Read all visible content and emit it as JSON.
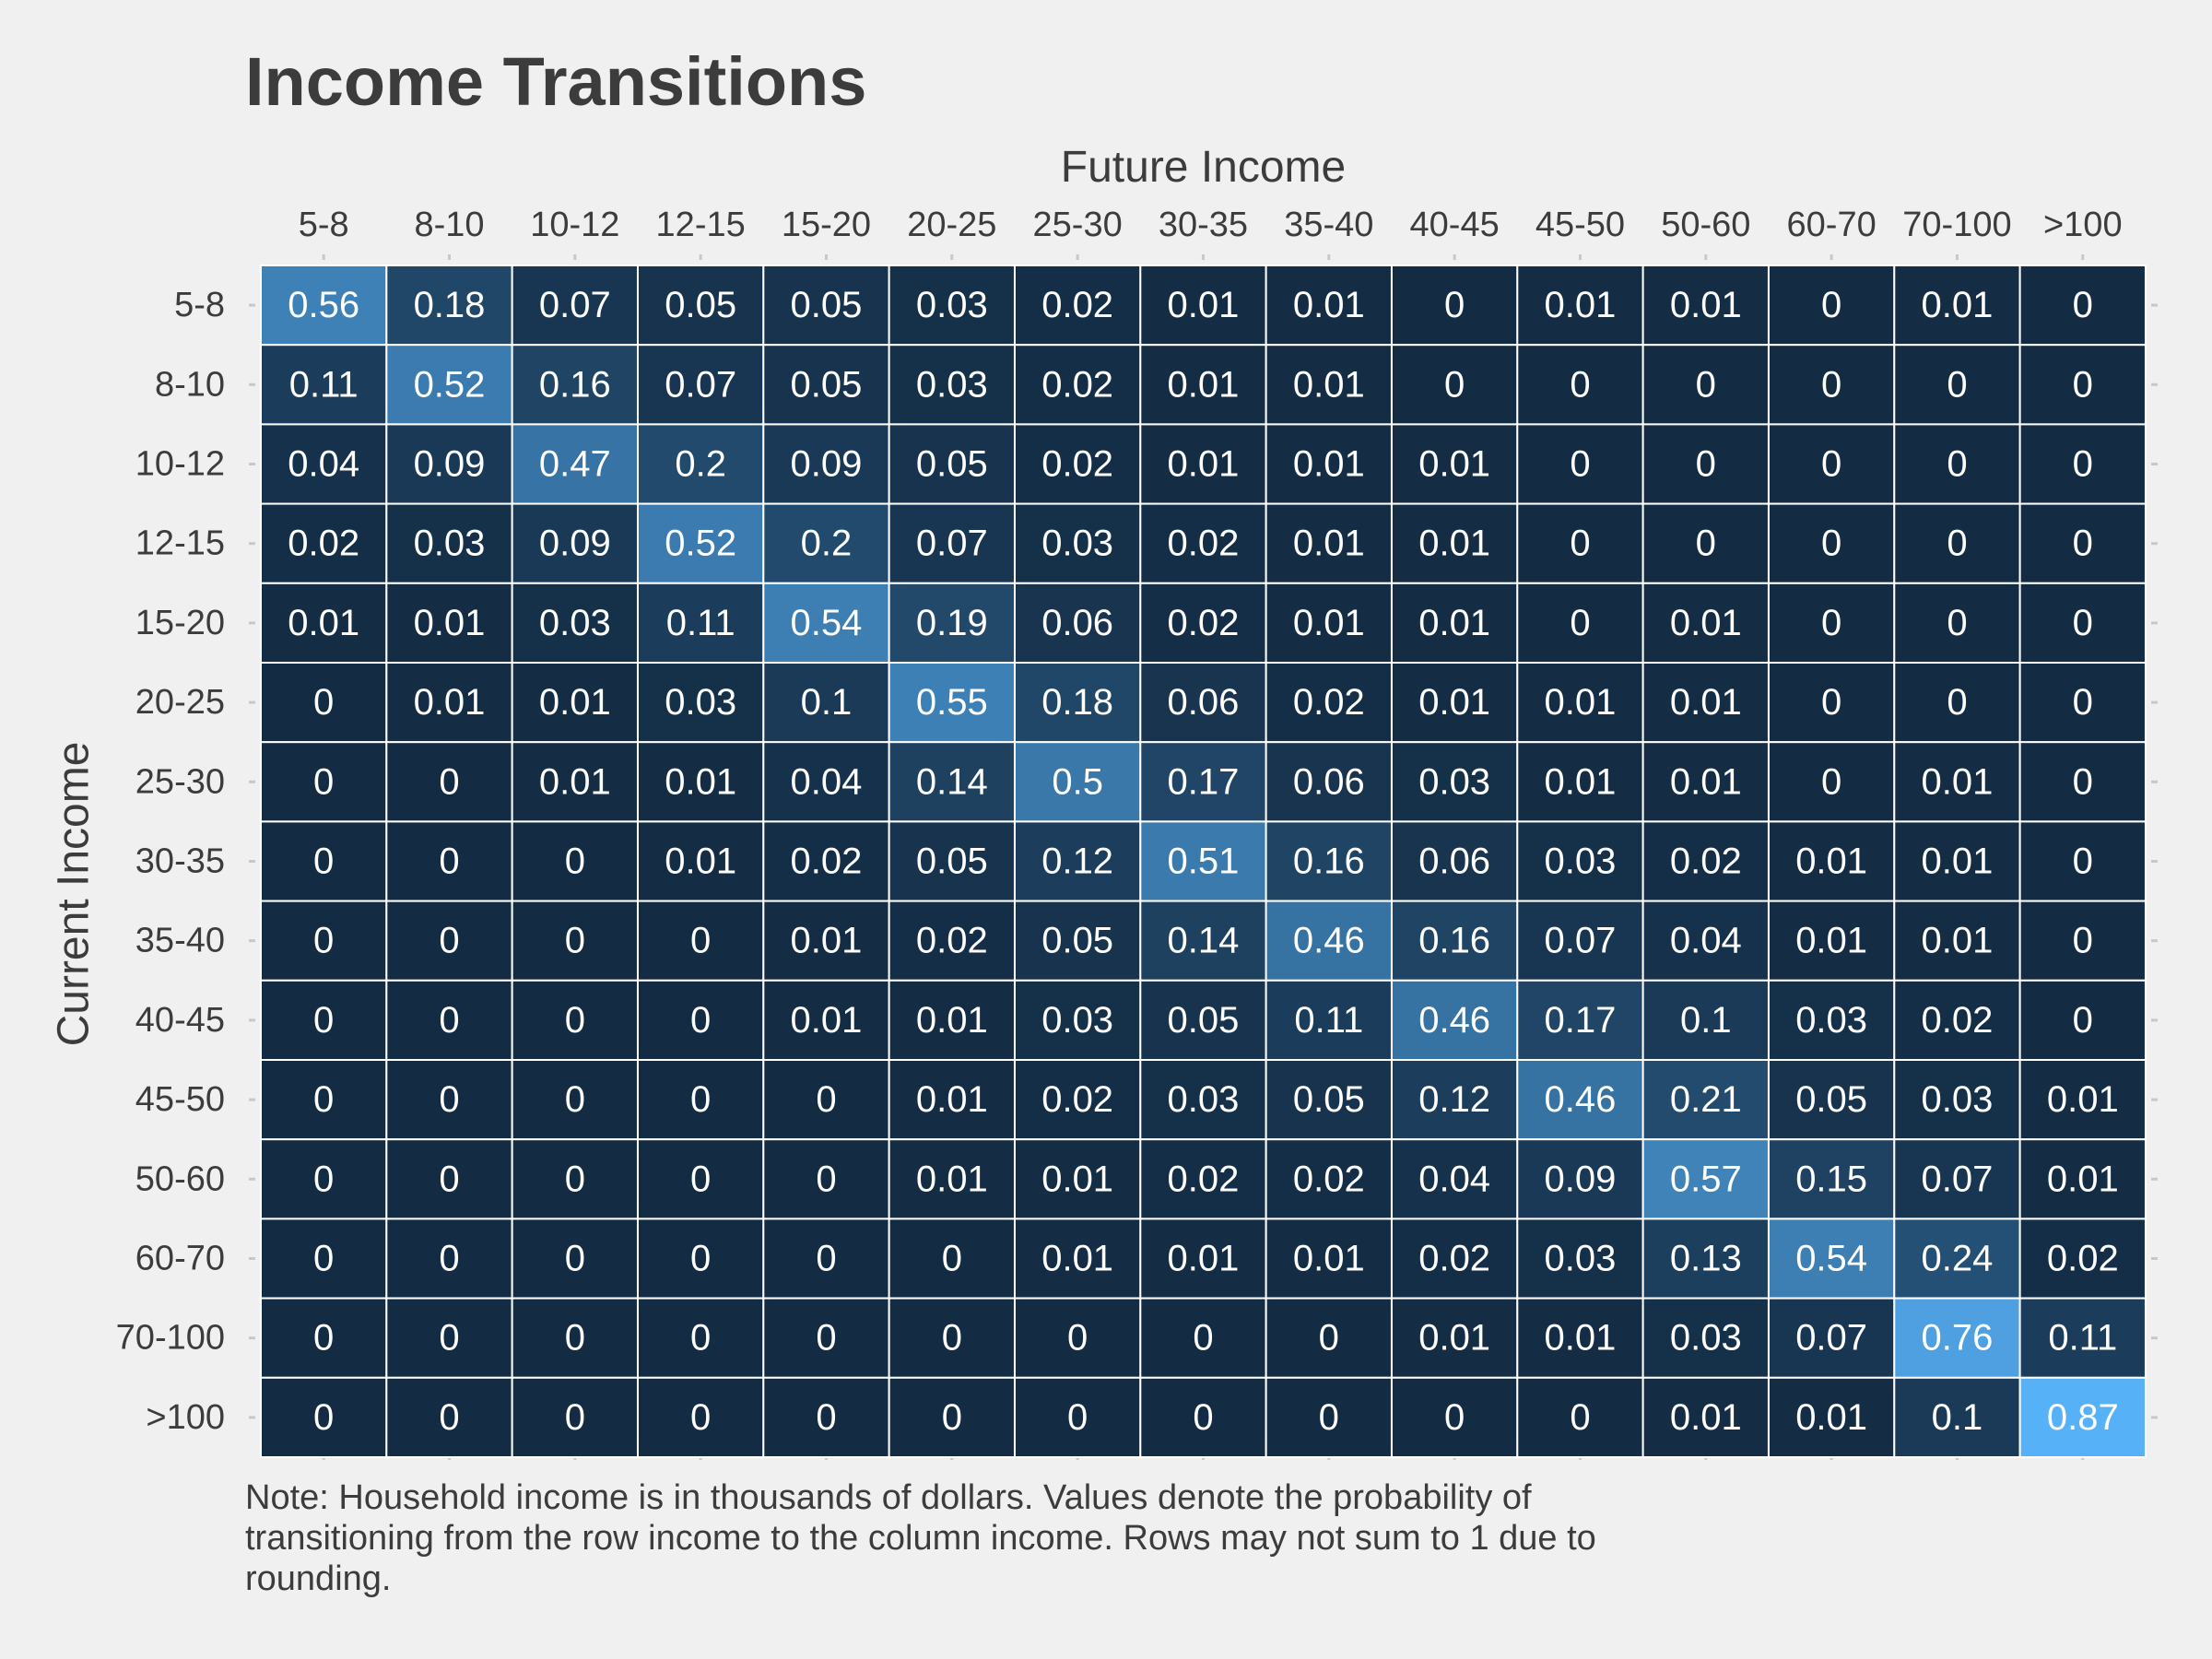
{
  "chart_data": {
    "type": "heatmap",
    "title": "Income Transitions",
    "xlabel": "Future Income",
    "ylabel": "Current Income",
    "x_categories": [
      "5-8",
      "8-10",
      "10-12",
      "12-15",
      "15-20",
      "20-25",
      "25-30",
      "30-35",
      "35-40",
      "40-45",
      "45-50",
      "50-60",
      "60-70",
      "70-100",
      ">100"
    ],
    "y_categories": [
      "5-8",
      "8-10",
      "10-12",
      "12-15",
      "15-20",
      "20-25",
      "25-30",
      "30-35",
      "35-40",
      "40-45",
      "45-50",
      "50-60",
      "60-70",
      "70-100",
      ">100"
    ],
    "values": [
      [
        0.56,
        0.18,
        0.07,
        0.05,
        0.05,
        0.03,
        0.02,
        0.01,
        0.01,
        0,
        0.01,
        0.01,
        0,
        0.01,
        0
      ],
      [
        0.11,
        0.52,
        0.16,
        0.07,
        0.05,
        0.03,
        0.02,
        0.01,
        0.01,
        0,
        0,
        0,
        0,
        0,
        0
      ],
      [
        0.04,
        0.09,
        0.47,
        0.2,
        0.09,
        0.05,
        0.02,
        0.01,
        0.01,
        0.01,
        0,
        0,
        0,
        0,
        0
      ],
      [
        0.02,
        0.03,
        0.09,
        0.52,
        0.2,
        0.07,
        0.03,
        0.02,
        0.01,
        0.01,
        0,
        0,
        0,
        0,
        0
      ],
      [
        0.01,
        0.01,
        0.03,
        0.11,
        0.54,
        0.19,
        0.06,
        0.02,
        0.01,
        0.01,
        0,
        0.01,
        0,
        0,
        0
      ],
      [
        0,
        0.01,
        0.01,
        0.03,
        0.1,
        0.55,
        0.18,
        0.06,
        0.02,
        0.01,
        0.01,
        0.01,
        0,
        0,
        0
      ],
      [
        0,
        0,
        0.01,
        0.01,
        0.04,
        0.14,
        0.5,
        0.17,
        0.06,
        0.03,
        0.01,
        0.01,
        0,
        0.01,
        0
      ],
      [
        0,
        0,
        0,
        0.01,
        0.02,
        0.05,
        0.12,
        0.51,
        0.16,
        0.06,
        0.03,
        0.02,
        0.01,
        0.01,
        0
      ],
      [
        0,
        0,
        0,
        0,
        0.01,
        0.02,
        0.05,
        0.14,
        0.46,
        0.16,
        0.07,
        0.04,
        0.01,
        0.01,
        0
      ],
      [
        0,
        0,
        0,
        0,
        0.01,
        0.01,
        0.03,
        0.05,
        0.11,
        0.46,
        0.17,
        0.1,
        0.03,
        0.02,
        0
      ],
      [
        0,
        0,
        0,
        0,
        0,
        0.01,
        0.02,
        0.03,
        0.05,
        0.12,
        0.46,
        0.21,
        0.05,
        0.03,
        0.01
      ],
      [
        0,
        0,
        0,
        0,
        0,
        0.01,
        0.01,
        0.02,
        0.02,
        0.04,
        0.09,
        0.57,
        0.15,
        0.07,
        0.01
      ],
      [
        0,
        0,
        0,
        0,
        0,
        0,
        0.01,
        0.01,
        0.01,
        0.02,
        0.03,
        0.13,
        0.54,
        0.24,
        0.02
      ],
      [
        0,
        0,
        0,
        0,
        0,
        0,
        0,
        0,
        0,
        0.01,
        0.01,
        0.03,
        0.07,
        0.76,
        0.11
      ],
      [
        0,
        0,
        0,
        0,
        0,
        0,
        0,
        0,
        0,
        0,
        0,
        0.01,
        0.01,
        0.1,
        0.87
      ]
    ],
    "color_scale": {
      "low": "#132b43",
      "high": "#56b1f7"
    },
    "grid": false,
    "legend": "none",
    "note": "Note: Household income is in thousands of dollars. Values denote the probability of transitioning from the row income to the column income. Rows may not sum to 1 due to rounding."
  },
  "colors": {
    "background": "#f0f0f0",
    "text": "#3c3c3c",
    "cell_border": "#ffffff",
    "cell_text": "#ffffff"
  }
}
